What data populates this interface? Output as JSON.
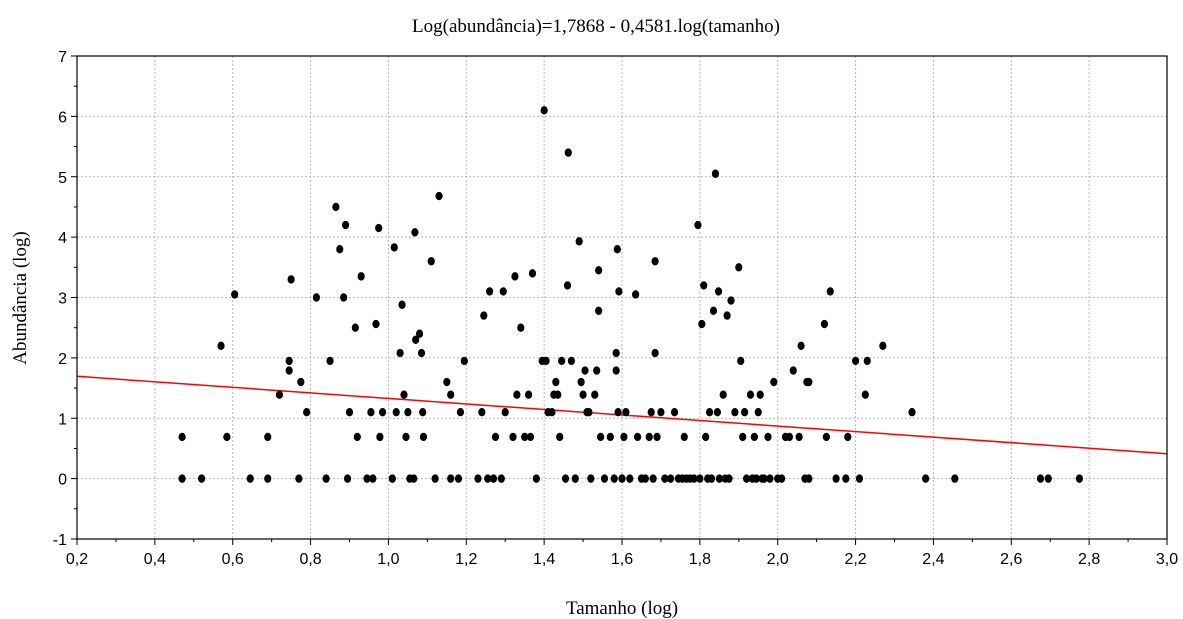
{
  "chart_data": {
    "type": "scatter",
    "title": "Log(abundância)=1,7868 - 0,4581.log(tamanho)",
    "xlabel": "Tamanho (log)",
    "ylabel": "Abundância (log)",
    "xlim": [
      0.2,
      3.0
    ],
    "ylim": [
      -1,
      7
    ],
    "x_ticks": [
      "0,2",
      "0,4",
      "0,6",
      "0,8",
      "1,0",
      "1,2",
      "1,4",
      "1,6",
      "1,8",
      "2,0",
      "2,2",
      "2,4",
      "2,6",
      "2,8",
      "3,0"
    ],
    "y_ticks": [
      "-1",
      "0",
      "1",
      "2",
      "3",
      "4",
      "5",
      "6",
      "7"
    ],
    "grid": true,
    "colors": {
      "points": "#000000",
      "regression": "#ff0000"
    },
    "regression": {
      "intercept": 1.7868,
      "slope": -0.4581
    },
    "points": [
      [
        0.47,
        0.69
      ],
      [
        0.47,
        0
      ],
      [
        0.52,
        0
      ],
      [
        0.57,
        2.2
      ],
      [
        0.585,
        0.69
      ],
      [
        0.605,
        3.05
      ],
      [
        0.645,
        0
      ],
      [
        0.69,
        0.69
      ],
      [
        0.69,
        0
      ],
      [
        0.72,
        1.39
      ],
      [
        0.745,
        1.95
      ],
      [
        0.745,
        1.79
      ],
      [
        0.75,
        3.3
      ],
      [
        0.77,
        0
      ],
      [
        0.775,
        1.6
      ],
      [
        0.79,
        1.1
      ],
      [
        0.815,
        3.0
      ],
      [
        0.84,
        0
      ],
      [
        0.85,
        1.95
      ],
      [
        0.865,
        4.5
      ],
      [
        0.875,
        3.8
      ],
      [
        0.885,
        3.0
      ],
      [
        0.89,
        4.2
      ],
      [
        0.895,
        0
      ],
      [
        0.9,
        1.1
      ],
      [
        0.915,
        2.5
      ],
      [
        0.92,
        0.69
      ],
      [
        0.93,
        3.35
      ],
      [
        0.945,
        0
      ],
      [
        0.955,
        1.1
      ],
      [
        0.96,
        0
      ],
      [
        0.968,
        2.56
      ],
      [
        0.975,
        4.15
      ],
      [
        0.978,
        0.69
      ],
      [
        0.985,
        1.1
      ],
      [
        1.01,
        0
      ],
      [
        1.015,
        3.83
      ],
      [
        1.02,
        1.1
      ],
      [
        1.03,
        2.08
      ],
      [
        1.035,
        2.88
      ],
      [
        1.04,
        1.39
      ],
      [
        1.045,
        0.69
      ],
      [
        1.05,
        1.1
      ],
      [
        1.055,
        0
      ],
      [
        1.065,
        0
      ],
      [
        1.068,
        4.08
      ],
      [
        1.07,
        2.3
      ],
      [
        1.08,
        2.4
      ],
      [
        1.085,
        2.08
      ],
      [
        1.09,
        0.69
      ],
      [
        1.088,
        1.1
      ],
      [
        1.11,
        3.6
      ],
      [
        1.12,
        0
      ],
      [
        1.13,
        4.68
      ],
      [
        1.15,
        1.6
      ],
      [
        1.16,
        0
      ],
      [
        1.16,
        1.39
      ],
      [
        1.18,
        0
      ],
      [
        1.185,
        1.1
      ],
      [
        1.195,
        1.95
      ],
      [
        1.23,
        0
      ],
      [
        1.24,
        1.1
      ],
      [
        1.245,
        2.7
      ],
      [
        1.255,
        0
      ],
      [
        1.26,
        3.1
      ],
      [
        1.27,
        0
      ],
      [
        1.275,
        0.69
      ],
      [
        1.29,
        0
      ],
      [
        1.295,
        3.1
      ],
      [
        1.3,
        1.1
      ],
      [
        1.32,
        0.69
      ],
      [
        1.325,
        3.35
      ],
      [
        1.33,
        1.39
      ],
      [
        1.34,
        2.5
      ],
      [
        1.35,
        0.69
      ],
      [
        1.36,
        1.39
      ],
      [
        1.365,
        0.69
      ],
      [
        1.37,
        3.4
      ],
      [
        1.38,
        0
      ],
      [
        1.395,
        1.95
      ],
      [
        1.4,
        6.1
      ],
      [
        1.405,
        1.95
      ],
      [
        1.41,
        1.1
      ],
      [
        1.42,
        1.1
      ],
      [
        1.425,
        1.39
      ],
      [
        1.43,
        1.6
      ],
      [
        1.435,
        1.39
      ],
      [
        1.44,
        0.69
      ],
      [
        1.445,
        1.95
      ],
      [
        1.455,
        0
      ],
      [
        1.46,
        3.2
      ],
      [
        1.462,
        5.4
      ],
      [
        1.47,
        1.95
      ],
      [
        1.48,
        0
      ],
      [
        1.49,
        3.93
      ],
      [
        1.495,
        1.6
      ],
      [
        1.5,
        1.39
      ],
      [
        1.505,
        1.79
      ],
      [
        1.51,
        1.1
      ],
      [
        1.515,
        1.1
      ],
      [
        1.52,
        0
      ],
      [
        1.53,
        1.39
      ],
      [
        1.535,
        1.79
      ],
      [
        1.54,
        3.45
      ],
      [
        1.54,
        2.78
      ],
      [
        1.545,
        0.69
      ],
      [
        1.555,
        0
      ],
      [
        1.57,
        0.69
      ],
      [
        1.58,
        0
      ],
      [
        1.585,
        1.79
      ],
      [
        1.585,
        2.08
      ],
      [
        1.588,
        3.8
      ],
      [
        1.59,
        1.1
      ],
      [
        1.592,
        3.1
      ],
      [
        1.6,
        0
      ],
      [
        1.605,
        0.69
      ],
      [
        1.61,
        1.1
      ],
      [
        1.62,
        0
      ],
      [
        1.635,
        3.05
      ],
      [
        1.64,
        0.69
      ],
      [
        1.65,
        0
      ],
      [
        1.66,
        0
      ],
      [
        1.67,
        0.69
      ],
      [
        1.675,
        1.1
      ],
      [
        1.68,
        0
      ],
      [
        1.685,
        3.6
      ],
      [
        1.685,
        2.08
      ],
      [
        1.69,
        0.69
      ],
      [
        1.7,
        1.1
      ],
      [
        1.71,
        0
      ],
      [
        1.725,
        0
      ],
      [
        1.735,
        1.1
      ],
      [
        1.745,
        0
      ],
      [
        1.755,
        0
      ],
      [
        1.76,
        0.69
      ],
      [
        1.765,
        0
      ],
      [
        1.775,
        0
      ],
      [
        1.785,
        0
      ],
      [
        1.795,
        4.2
      ],
      [
        1.8,
        0
      ],
      [
        1.805,
        2.56
      ],
      [
        1.81,
        3.2
      ],
      [
        1.815,
        0.69
      ],
      [
        1.82,
        0
      ],
      [
        1.825,
        1.1
      ],
      [
        1.83,
        0
      ],
      [
        1.835,
        2.78
      ],
      [
        1.84,
        5.05
      ],
      [
        1.845,
        1.1
      ],
      [
        1.848,
        3.1
      ],
      [
        1.85,
        0
      ],
      [
        1.86,
        1.39
      ],
      [
        1.865,
        0
      ],
      [
        1.87,
        2.7
      ],
      [
        1.875,
        0
      ],
      [
        1.88,
        2.95
      ],
      [
        1.89,
        1.1
      ],
      [
        1.9,
        3.5
      ],
      [
        1.905,
        1.95
      ],
      [
        1.91,
        0.69
      ],
      [
        1.915,
        1.1
      ],
      [
        1.92,
        0
      ],
      [
        1.93,
        1.39
      ],
      [
        1.935,
        0
      ],
      [
        1.94,
        0.69
      ],
      [
        1.945,
        0
      ],
      [
        1.95,
        1.1
      ],
      [
        1.955,
        1.39
      ],
      [
        1.96,
        0
      ],
      [
        1.965,
        0
      ],
      [
        1.975,
        0.69
      ],
      [
        1.98,
        0
      ],
      [
        1.99,
        1.6
      ],
      [
        2.0,
        0
      ],
      [
        2.01,
        0
      ],
      [
        2.02,
        0.69
      ],
      [
        2.03,
        0.69
      ],
      [
        2.04,
        1.79
      ],
      [
        2.055,
        0.69
      ],
      [
        2.06,
        2.2
      ],
      [
        2.07,
        0
      ],
      [
        2.075,
        1.6
      ],
      [
        2.08,
        1.6
      ],
      [
        2.08,
        0
      ],
      [
        2.12,
        2.56
      ],
      [
        2.125,
        0.69
      ],
      [
        2.135,
        3.1
      ],
      [
        2.15,
        0
      ],
      [
        2.175,
        0
      ],
      [
        2.18,
        0.69
      ],
      [
        2.2,
        1.95
      ],
      [
        2.21,
        0
      ],
      [
        2.225,
        1.39
      ],
      [
        2.23,
        1.95
      ],
      [
        2.27,
        2.2
      ],
      [
        2.345,
        1.1
      ],
      [
        2.38,
        0
      ],
      [
        2.455,
        0
      ],
      [
        2.675,
        0
      ],
      [
        2.695,
        0
      ],
      [
        2.775,
        0
      ]
    ]
  }
}
